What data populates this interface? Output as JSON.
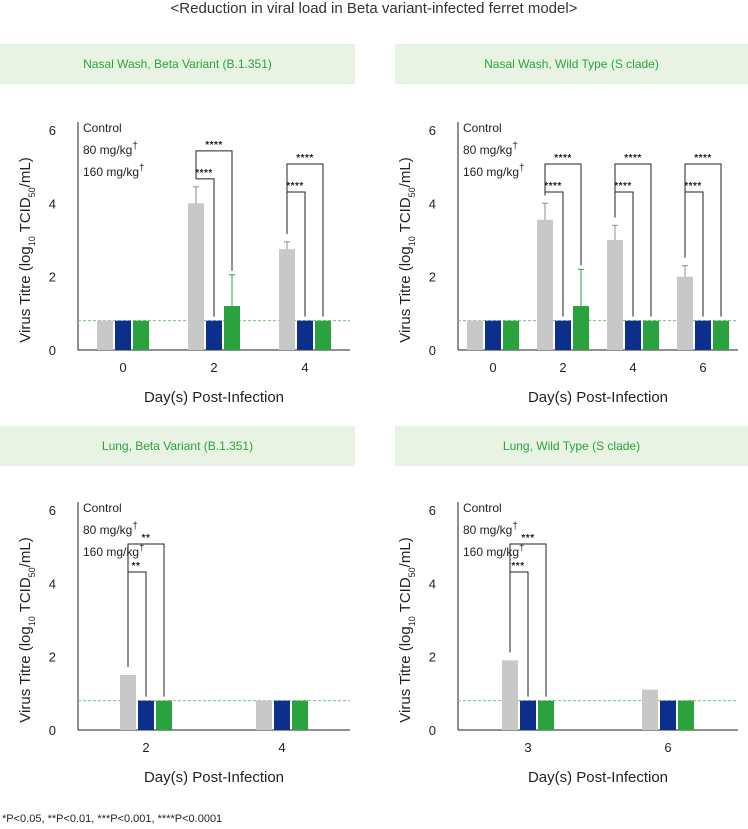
{
  "figure_title": "<Reduction in viral load in Beta variant-infected ferret model>",
  "footnote": "*P<0.05, **P<0.01, ***P<0.001, ****P<0.0001",
  "colors": {
    "control": "#c8c8c8",
    "dose_80": "#0b2f8a",
    "dose_160": "#2aa33f",
    "header_bg": "#e9f3e3",
    "header_text": "#2aa33f",
    "lod_line": "#7fbf7f"
  },
  "chart_data": [
    {
      "type": "bar",
      "title": "Nasal Wash, Beta Variant (B.1.351)",
      "xlabel": "Day(s) Post-Infection",
      "ylabel_parts": [
        "Virus Titre (log",
        "10",
        " TCID",
        "50",
        "/mL)"
      ],
      "ylim": [
        0,
        6
      ],
      "yticks": [
        0,
        2,
        4,
        6
      ],
      "detection_limit": 0.8,
      "legend": [
        {
          "label": "Control",
          "dagger": ""
        },
        {
          "label": "80 mg/kg",
          "dagger": "†"
        },
        {
          "label": "160 mg/kg",
          "dagger": "†"
        }
      ],
      "categories": [
        "0",
        "2",
        "4"
      ],
      "series": [
        {
          "values": [
            0.8,
            4.0,
            2.75
          ],
          "errors": [
            0,
            0.45,
            0.2
          ]
        },
        {
          "values": [
            0.8,
            0.8,
            0.8
          ],
          "errors": [
            0,
            0,
            0
          ]
        },
        {
          "values": [
            0.8,
            1.2,
            0.8
          ],
          "errors": [
            0,
            0.85,
            0
          ]
        }
      ],
      "significance": [
        {
          "category": 1,
          "from": 0,
          "to": 1,
          "label": "****"
        },
        {
          "category": 1,
          "from": 0,
          "to": 2,
          "label": "****"
        },
        {
          "category": 2,
          "from": 0,
          "to": 1,
          "label": "****"
        },
        {
          "category": 2,
          "from": 0,
          "to": 2,
          "label": "****"
        }
      ]
    },
    {
      "type": "bar",
      "title": "Nasal Wash, Wild Type (S clade)",
      "xlabel": "Day(s) Post-Infection",
      "ylabel_parts": [
        "Virus Titre (log",
        "10",
        " TCID",
        "50",
        "/mL)"
      ],
      "ylim": [
        0,
        6
      ],
      "yticks": [
        0,
        2,
        4,
        6
      ],
      "detection_limit": 0.8,
      "legend": [
        {
          "label": "Control",
          "dagger": ""
        },
        {
          "label": "80 mg/kg",
          "dagger": "†"
        },
        {
          "label": "160 mg/kg",
          "dagger": "†"
        }
      ],
      "categories": [
        "0",
        "2",
        "4",
        "6"
      ],
      "series": [
        {
          "values": [
            0.8,
            3.55,
            3.0,
            2.0
          ],
          "errors": [
            0,
            0.45,
            0.4,
            0.3
          ]
        },
        {
          "values": [
            0.8,
            0.8,
            0.8,
            0.8
          ],
          "errors": [
            0,
            0,
            0,
            0
          ]
        },
        {
          "values": [
            0.8,
            1.2,
            0.8,
            0.8
          ],
          "errors": [
            0,
            1.0,
            0,
            0
          ]
        }
      ],
      "significance": [
        {
          "category": 1,
          "from": 0,
          "to": 1,
          "label": "****"
        },
        {
          "category": 1,
          "from": 0,
          "to": 2,
          "label": "****"
        },
        {
          "category": 2,
          "from": 0,
          "to": 1,
          "label": "****"
        },
        {
          "category": 2,
          "from": 0,
          "to": 2,
          "label": "****"
        },
        {
          "category": 3,
          "from": 0,
          "to": 1,
          "label": "****"
        },
        {
          "category": 3,
          "from": 0,
          "to": 2,
          "label": "****"
        }
      ]
    },
    {
      "type": "bar",
      "title": "Lung, Beta Variant (B.1.351)",
      "xlabel": "Day(s) Post-Infection",
      "ylabel_parts": [
        "Virus Titre (log",
        "10",
        " TCID",
        "50",
        "/mL)"
      ],
      "ylim": [
        0,
        6
      ],
      "yticks": [
        0,
        2,
        4,
        6
      ],
      "detection_limit": 0.8,
      "legend": [
        {
          "label": "Control",
          "dagger": ""
        },
        {
          "label": "80 mg/kg",
          "dagger": "†"
        },
        {
          "label": "160 mg/kg",
          "dagger": "†"
        }
      ],
      "categories": [
        "2",
        "4"
      ],
      "series": [
        {
          "values": [
            1.5,
            0.8
          ],
          "errors": [
            0,
            0
          ]
        },
        {
          "values": [
            0.8,
            0.8
          ],
          "errors": [
            0,
            0
          ]
        },
        {
          "values": [
            0.8,
            0.8
          ],
          "errors": [
            0,
            0
          ]
        }
      ],
      "significance": [
        {
          "category": 0,
          "from": 0,
          "to": 1,
          "label": "**"
        },
        {
          "category": 0,
          "from": 0,
          "to": 2,
          "label": "**"
        }
      ]
    },
    {
      "type": "bar",
      "title": "Lung, Wild Type (S clade)",
      "xlabel": "Day(s) Post-Infection",
      "ylabel_parts": [
        "Virus Titre (log",
        "10",
        " TCID",
        "50",
        "/mL)"
      ],
      "ylim": [
        0,
        6
      ],
      "yticks": [
        0,
        2,
        4,
        6
      ],
      "detection_limit": 0.8,
      "legend": [
        {
          "label": "Control",
          "dagger": ""
        },
        {
          "label": "80 mg/kg",
          "dagger": "†"
        },
        {
          "label": "160 mg/kg",
          "dagger": "†"
        }
      ],
      "categories": [
        "3",
        "6"
      ],
      "series": [
        {
          "values": [
            1.9,
            1.1
          ],
          "errors": [
            0,
            0
          ]
        },
        {
          "values": [
            0.8,
            0.8
          ],
          "errors": [
            0,
            0
          ]
        },
        {
          "values": [
            0.8,
            0.8
          ],
          "errors": [
            0,
            0
          ]
        }
      ],
      "significance": [
        {
          "category": 0,
          "from": 0,
          "to": 1,
          "label": "***"
        },
        {
          "category": 0,
          "from": 0,
          "to": 2,
          "label": "***"
        }
      ]
    }
  ]
}
